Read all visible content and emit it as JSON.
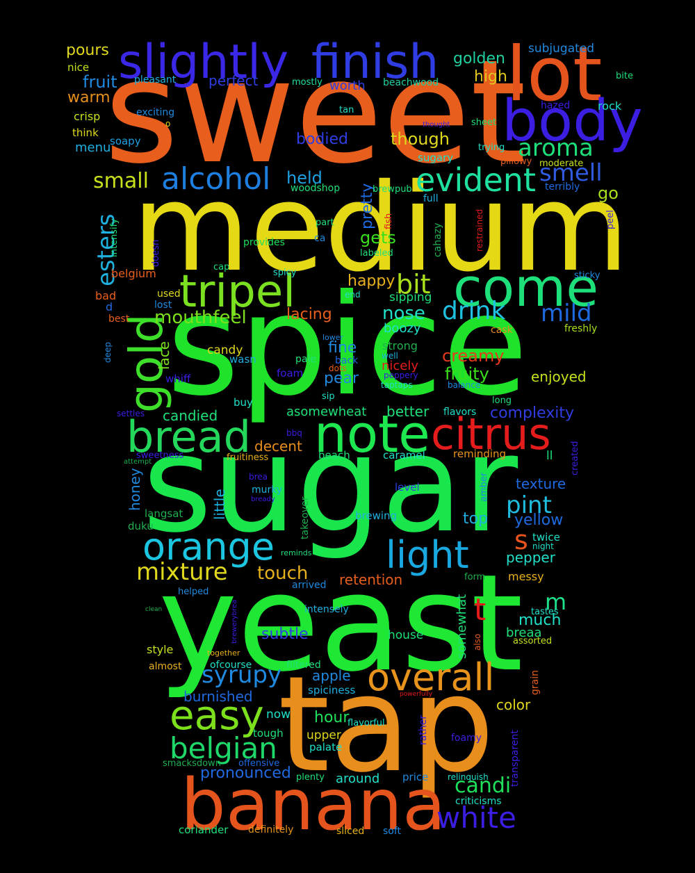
{
  "words": [
    {
      "text": "sweet",
      "color": "#e85e1c"
    },
    {
      "text": "medium",
      "color": "#e5d815"
    },
    {
      "text": "spice",
      "color": "#1fe32b"
    },
    {
      "text": "sugar",
      "color": "#18e64c"
    },
    {
      "text": "yeast",
      "color": "#1ee834"
    },
    {
      "text": "tap",
      "color": "#e88e1c"
    },
    {
      "text": "banana",
      "color": "#e5541c"
    },
    {
      "text": "lot",
      "color": "#e5541c"
    },
    {
      "text": "body",
      "color": "#3a1fe3"
    },
    {
      "text": "finish",
      "color": "#2f3de3"
    },
    {
      "text": "slightly",
      "color": "#3a28e6"
    },
    {
      "text": "come",
      "color": "#1de07a"
    },
    {
      "text": "note",
      "color": "#1ee850"
    },
    {
      "text": "citrus",
      "color": "#e51c1c"
    },
    {
      "text": "bread",
      "color": "#24d85c"
    },
    {
      "text": "tripel",
      "color": "#7ae01f"
    },
    {
      "text": "gold",
      "color": "#3ddf2a"
    },
    {
      "text": "orange",
      "color": "#1cc6e0"
    },
    {
      "text": "light",
      "color": "#1aa8e0"
    },
    {
      "text": "overall",
      "color": "#e8941c"
    },
    {
      "text": "easy",
      "color": "#7ce01c"
    },
    {
      "text": "alcohol",
      "color": "#1f7fe0"
    },
    {
      "text": "evident",
      "color": "#1ee0a0"
    },
    {
      "text": "belgian",
      "color": "#1ed86a"
    },
    {
      "text": "white",
      "color": "#3a1fe3"
    },
    {
      "text": "candi",
      "color": "#1ee05a"
    },
    {
      "text": "syrupy",
      "color": "#1f8ae0"
    },
    {
      "text": "mixture",
      "color": "#e0d81c"
    },
    {
      "text": "aroma",
      "color": "#1ee07a"
    },
    {
      "text": "smell",
      "color": "#2f5ae0"
    },
    {
      "text": "esters",
      "color": "#1fb0e0"
    },
    {
      "text": "bit",
      "color": "#a8e01c"
    },
    {
      "text": "drink",
      "color": "#1fc0e0"
    },
    {
      "text": "mild",
      "color": "#1f6ae0"
    },
    {
      "text": "pint",
      "color": "#1fbce0"
    },
    {
      "text": "s",
      "color": "#e8541c"
    },
    {
      "text": "t",
      "color": "#e51c1c"
    },
    {
      "text": "m",
      "color": "#1ee08a"
    },
    {
      "text": "small",
      "color": "#c8e01c"
    },
    {
      "text": "held",
      "color": "#1fa0e0"
    },
    {
      "text": "mouthfeel",
      "color": "#7ce01c"
    },
    {
      "text": "nose",
      "color": "#1fe0c8"
    },
    {
      "text": "fruity",
      "color": "#3ae01c"
    },
    {
      "text": "creamy",
      "color": "#e53a1c"
    },
    {
      "text": "happy",
      "color": "#e8b01c"
    },
    {
      "text": "gets",
      "color": "#3ae01c"
    },
    {
      "text": "pretty",
      "color": "#1f6ae0"
    },
    {
      "text": "though",
      "color": "#e0d81c"
    },
    {
      "text": "bodied",
      "color": "#2f3de3"
    },
    {
      "text": "worth",
      "color": "#2f3de3"
    },
    {
      "text": "perfect",
      "color": "#2f3de3"
    },
    {
      "text": "fruit",
      "color": "#1f8ae0"
    },
    {
      "text": "pours",
      "color": "#e0d81c"
    },
    {
      "text": "nice",
      "color": "#c8e01c"
    },
    {
      "text": "warm",
      "color": "#e88e1c"
    },
    {
      "text": "crisp",
      "color": "#c8e01c"
    },
    {
      "text": "think",
      "color": "#e0d81c"
    },
    {
      "text": "menu",
      "color": "#1fb0e0"
    },
    {
      "text": "soapy",
      "color": "#1fa0e0"
    },
    {
      "text": "pleasant",
      "color": "#1fb0e0"
    },
    {
      "text": "mostly",
      "color": "#1fe0a0"
    },
    {
      "text": "beachwood",
      "color": "#1fd0a0"
    },
    {
      "text": "golden",
      "color": "#1fd0a0"
    },
    {
      "text": "high",
      "color": "#e0c81c"
    },
    {
      "text": "subjugated",
      "color": "#1f8ae0"
    },
    {
      "text": "bite",
      "color": "#1ee07a"
    },
    {
      "text": "hazed",
      "color": "#3a1fe3"
    },
    {
      "text": "rock",
      "color": "#1fe0c8"
    },
    {
      "text": "exciting",
      "color": "#1f8ae0"
    },
    {
      "text": "tan",
      "color": "#1fe0c8"
    },
    {
      "text": "thought",
      "color": "#3a1fe3"
    },
    {
      "text": "sheet",
      "color": "#1ee07a"
    },
    {
      "text": "trying",
      "color": "#1fe0c8"
    },
    {
      "text": "sugary",
      "color": "#1fe0c8"
    },
    {
      "text": "pillowy",
      "color": "#e85e1c"
    },
    {
      "text": "moderate",
      "color": "#c8e01c"
    },
    {
      "text": "terribly",
      "color": "#1f6ae0"
    },
    {
      "text": "go",
      "color": "#a8e01c"
    },
    {
      "text": "peel",
      "color": "#3a1fe3"
    },
    {
      "text": "woodshop",
      "color": "#1ee07a"
    },
    {
      "text": "brewpub",
      "color": "#1ee07a"
    },
    {
      "text": "full",
      "color": "#1fb0e0"
    },
    {
      "text": "fish",
      "color": "#e51c1c"
    },
    {
      "text": "restrained",
      "color": "#e51c1c"
    },
    {
      "text": "part",
      "color": "#1ee07a"
    },
    {
      "text": "ca",
      "color": "#1f8ae0"
    },
    {
      "text": "cahazy",
      "color": "#1fb050"
    },
    {
      "text": "provides",
      "color": "#1ee05a"
    },
    {
      "text": "labeled",
      "color": "#1ee07a"
    },
    {
      "text": "intensify",
      "color": "#1ee07a"
    },
    {
      "text": "doesn",
      "color": "#3a1fe3"
    },
    {
      "text": "cap",
      "color": "#1ee07a"
    },
    {
      "text": "spicy",
      "color": "#1fe0c8"
    },
    {
      "text": "sticky",
      "color": "#1f8ae0"
    },
    {
      "text": "belgium",
      "color": "#e85e1c"
    },
    {
      "text": "bad",
      "color": "#e85e1c"
    },
    {
      "text": "used",
      "color": "#e0d81c"
    },
    {
      "text": "end",
      "color": "#1fe0c8"
    },
    {
      "text": "sipping",
      "color": "#1ee07a"
    },
    {
      "text": "lost",
      "color": "#1f8ae0"
    },
    {
      "text": "d",
      "color": "#1f6ae0"
    },
    {
      "text": "best",
      "color": "#e85e1c"
    },
    {
      "text": "lacing",
      "color": "#e85e1c"
    },
    {
      "text": "cask",
      "color": "#e88e1c"
    },
    {
      "text": "freshly",
      "color": "#a8e01c"
    },
    {
      "text": "boozy",
      "color": "#1fe0c8"
    },
    {
      "text": "lower",
      "color": "#1f8ae0"
    },
    {
      "text": "strong",
      "color": "#1fb050"
    },
    {
      "text": "well",
      "color": "#1fb0e0"
    },
    {
      "text": "lace",
      "color": "#7ce01c"
    },
    {
      "text": "candy",
      "color": "#e0d81c"
    },
    {
      "text": "fine",
      "color": "#1f8ae0"
    },
    {
      "text": "back",
      "color": "#1f6ae0"
    },
    {
      "text": "nicely",
      "color": "#e51c1c"
    },
    {
      "text": "deep",
      "color": "#1f8ae0"
    },
    {
      "text": "wasn",
      "color": "#1fb0e0"
    },
    {
      "text": "pale",
      "color": "#1ee07a"
    },
    {
      "text": "dots",
      "color": "#e85e1c"
    },
    {
      "text": "peppery",
      "color": "#3a1fe3"
    },
    {
      "text": "enjoyed",
      "color": "#c8e01c"
    },
    {
      "text": "whiff",
      "color": "#3a1fe3"
    },
    {
      "text": "foam",
      "color": "#3a1fe3"
    },
    {
      "text": "pear",
      "color": "#1f8ae0"
    },
    {
      "text": "taptaps",
      "color": "#1fe0c8"
    },
    {
      "text": "balance",
      "color": "#1f8ae0"
    },
    {
      "text": "long",
      "color": "#1ee07a"
    },
    {
      "text": "buy",
      "color": "#1fe0c8"
    },
    {
      "text": "sip",
      "color": "#1fe0c8"
    },
    {
      "text": "asomewheat",
      "color": "#1ee07a"
    },
    {
      "text": "better",
      "color": "#1ee07a"
    },
    {
      "text": "flavors",
      "color": "#1fe0c8"
    },
    {
      "text": "complexity",
      "color": "#2f3de3"
    },
    {
      "text": "settles",
      "color": "#3a1fe3"
    },
    {
      "text": "candied",
      "color": "#1ee07a"
    },
    {
      "text": "bbq",
      "color": "#3a1fe3"
    },
    {
      "text": "decent",
      "color": "#e88e1c"
    },
    {
      "text": "created",
      "color": "#3a1fe3"
    },
    {
      "text": "sweetness",
      "color": "#3a1fe3"
    },
    {
      "text": "fruitiness",
      "color": "#e8b01c"
    },
    {
      "text": "beach",
      "color": "#1ee07a"
    },
    {
      "text": "caramel",
      "color": "#1fe0c8"
    },
    {
      "text": "reminding",
      "color": "#e8941c"
    },
    {
      "text": "ll",
      "color": "#1ee07a"
    },
    {
      "text": "attempt",
      "color": "#1fb050"
    },
    {
      "text": "brea",
      "color": "#3a1fe3"
    },
    {
      "text": "honey",
      "color": "#1f8ae0"
    },
    {
      "text": "little",
      "color": "#1fb0e0"
    },
    {
      "text": "murky",
      "color": "#1fb0e0"
    },
    {
      "text": "bready",
      "color": "#3a1fe3"
    },
    {
      "text": "level",
      "color": "#2f3de3"
    },
    {
      "text": "amber",
      "color": "#1f8ae0"
    },
    {
      "text": "texture",
      "color": "#1f6ae0"
    },
    {
      "text": "langsat",
      "color": "#1fb050"
    },
    {
      "text": "takeover",
      "color": "#1fb050"
    },
    {
      "text": "brewing",
      "color": "#1fb0e0"
    },
    {
      "text": "top",
      "color": "#1fb0e0"
    },
    {
      "text": "yellow",
      "color": "#1f6ae0"
    },
    {
      "text": "duku",
      "color": "#1fb050"
    },
    {
      "text": "reminds",
      "color": "#1ee07a"
    },
    {
      "text": "twice",
      "color": "#1fe0c8"
    },
    {
      "text": "night",
      "color": "#1fe0c8"
    },
    {
      "text": "pepper",
      "color": "#1fe0c8"
    },
    {
      "text": "touch",
      "color": "#e8b01c"
    },
    {
      "text": "retention",
      "color": "#e85e1c"
    },
    {
      "text": "arrived",
      "color": "#1f8ae0"
    },
    {
      "text": "form",
      "color": "#1fb050"
    },
    {
      "text": "messy",
      "color": "#e8b01c"
    },
    {
      "text": "helped",
      "color": "#1f8ae0"
    },
    {
      "text": "clean",
      "color": "#1fb050"
    },
    {
      "text": "brewerybrea",
      "color": "#3a1fe3"
    },
    {
      "text": "intensely",
      "color": "#1fb0e0"
    },
    {
      "text": "somewhat",
      "color": "#1ee07a"
    },
    {
      "text": "tastes",
      "color": "#1fe0c8"
    },
    {
      "text": "much",
      "color": "#1fe0c8"
    },
    {
      "text": "breaa",
      "color": "#1ee07a"
    },
    {
      "text": "assorted",
      "color": "#c8e01c"
    },
    {
      "text": "subtle",
      "color": "#2f3de3"
    },
    {
      "text": "house",
      "color": "#1ee07a"
    },
    {
      "text": "also",
      "color": "#e85e1c"
    },
    {
      "text": "style",
      "color": "#c8e01c"
    },
    {
      "text": "together",
      "color": "#e8b01c"
    },
    {
      "text": "almost",
      "color": "#e8b01c"
    },
    {
      "text": "ofcourse",
      "color": "#1fe0c8"
    },
    {
      "text": "filtered",
      "color": "#1ee07a"
    },
    {
      "text": "apple",
      "color": "#1f8ae0"
    },
    {
      "text": "grain",
      "color": "#e85e1c"
    },
    {
      "text": "burnished",
      "color": "#1f6ae0"
    },
    {
      "text": "spiciness",
      "color": "#1fb0e0"
    },
    {
      "text": "powerfully",
      "color": "#e51c1c"
    },
    {
      "text": "color",
      "color": "#e0d81c"
    },
    {
      "text": "now",
      "color": "#1fe0c8"
    },
    {
      "text": "hour",
      "color": "#1ee05a"
    },
    {
      "text": "flavorful",
      "color": "#1fe0c8"
    },
    {
      "text": "rather",
      "color": "#3a1fe3"
    },
    {
      "text": "transparent",
      "color": "#3a1fe3"
    },
    {
      "text": "tough",
      "color": "#1ee07a"
    },
    {
      "text": "upper",
      "color": "#e0d81c"
    },
    {
      "text": "foamy",
      "color": "#3a1fe3"
    },
    {
      "text": "palate",
      "color": "#1fe0c8"
    },
    {
      "text": "smacksdown",
      "color": "#1fb050"
    },
    {
      "text": "offensive",
      "color": "#1f6ae0"
    },
    {
      "text": "pronounced",
      "color": "#1f6ae0"
    },
    {
      "text": "plenty",
      "color": "#1ee07a"
    },
    {
      "text": "around",
      "color": "#1fe0c8"
    },
    {
      "text": "price",
      "color": "#1f8ae0"
    },
    {
      "text": "relinquish",
      "color": "#1fe0c8"
    },
    {
      "text": "criticisms",
      "color": "#1fe0c8"
    },
    {
      "text": "coriander",
      "color": "#1ee07a"
    },
    {
      "text": "definitely",
      "color": "#e8941c"
    },
    {
      "text": "sliced",
      "color": "#e8b01c"
    },
    {
      "text": "soft",
      "color": "#1f8ae0"
    },
    {
      "text": "o",
      "color": "#e0d81c"
    }
  ]
}
